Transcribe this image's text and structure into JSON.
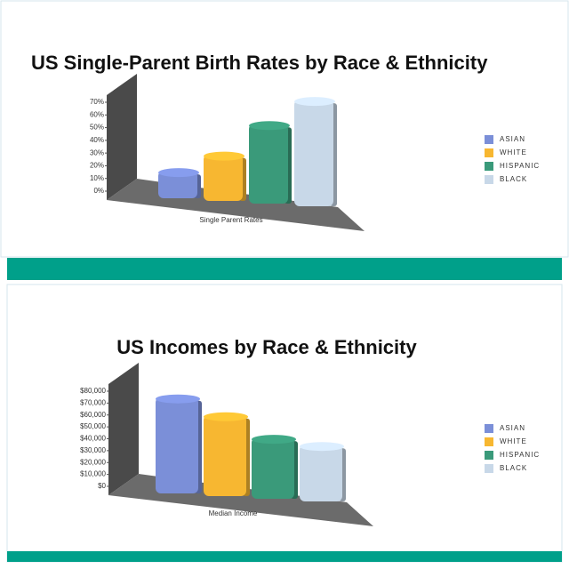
{
  "chart_data": [
    {
      "type": "bar",
      "title": "US Single-Parent Birth Rates by Race & Ethnicity",
      "categories": [
        "Single Parent Rates"
      ],
      "series": [
        {
          "name": "ASIAN",
          "color": "#7b8fd8",
          "values": [
            16
          ]
        },
        {
          "name": "WHITE",
          "color": "#f7b731",
          "values": [
            29
          ]
        },
        {
          "name": "HISPANIC",
          "color": "#3a9a7a",
          "values": [
            53
          ]
        },
        {
          "name": "BLACK",
          "color": "#c8d8e8",
          "values": [
            72
          ]
        }
      ],
      "ylim": [
        0,
        70
      ],
      "yticks": [
        {
          "value": 0,
          "label": "0%"
        },
        {
          "value": 10,
          "label": "10%"
        },
        {
          "value": 20,
          "label": "20%"
        },
        {
          "value": 30,
          "label": "30%"
        },
        {
          "value": 40,
          "label": "40%"
        },
        {
          "value": 50,
          "label": "50%"
        },
        {
          "value": 60,
          "label": "60%"
        },
        {
          "value": 70,
          "label": "70%"
        }
      ],
      "legend": "right"
    },
    {
      "type": "bar",
      "title": "US Incomes by Race & Ethnicity",
      "categories": [
        "Median Income"
      ],
      "series": [
        {
          "name": "ASIAN",
          "color": "#7b8fd8",
          "values": [
            75000
          ]
        },
        {
          "name": "WHITE",
          "color": "#f7b731",
          "values": [
            60000
          ]
        },
        {
          "name": "HISPANIC",
          "color": "#3a9a7a",
          "values": [
            41000
          ]
        },
        {
          "name": "BLACK",
          "color": "#c8d8e8",
          "values": [
            35000
          ]
        }
      ],
      "ylim": [
        0,
        80000
      ],
      "yticks": [
        {
          "value": 0,
          "label": "$0"
        },
        {
          "value": 10000,
          "label": "$10,000"
        },
        {
          "value": 20000,
          "label": "$20,000"
        },
        {
          "value": 30000,
          "label": "$30,000"
        },
        {
          "value": 40000,
          "label": "$40,000"
        },
        {
          "value": 50000,
          "label": "$50,000"
        },
        {
          "value": 60000,
          "label": "$60,000"
        },
        {
          "value": 70000,
          "label": "$70,000"
        },
        {
          "value": 80000,
          "label": "$80,000"
        }
      ],
      "legend": "right"
    }
  ]
}
